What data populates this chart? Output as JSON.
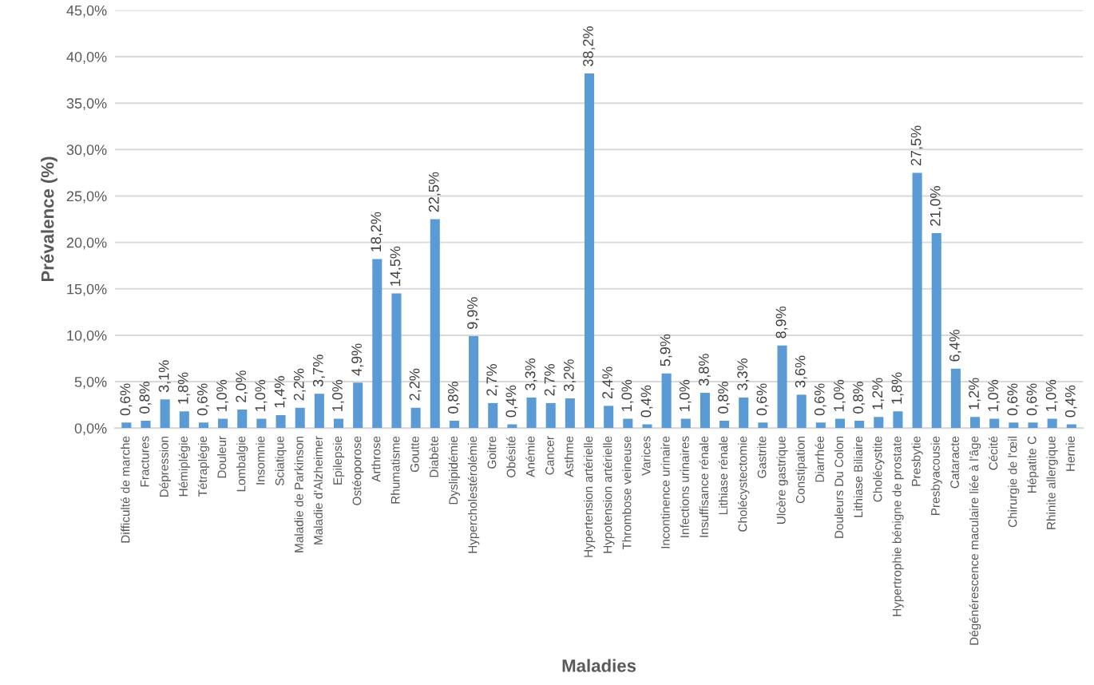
{
  "chart_data": {
    "type": "bar",
    "xlabel": "Maladies",
    "ylabel": "Prévalence (%)",
    "categories": [
      "Difficulté de marche",
      "Fractures",
      "Dépression",
      "Hémiplégie",
      "Tétraplégie",
      "Douleur",
      "Lombalgie",
      "Insomnie",
      "Sciatique",
      "Maladie de Parkinson",
      "Maladie d'Alzheimer",
      "Epilepsie",
      "Ostéoporose",
      "Arthrose",
      "Rhumatisme",
      "Goutte",
      "Diabète",
      "Dyslipidémie",
      "Hypercholestérolémie",
      "Goitre",
      "Obésité",
      "Anémie",
      "Cancer",
      "Asthme",
      "Hypertension artérielle",
      "Hypotension artérielle",
      "Thrombose veineuse",
      "Varices",
      "Incontinence urinaire",
      "Infections urinaires",
      "Insuffisance rénale",
      "Lithiase rénale",
      "Cholécystectomie",
      "Gastrite",
      "Ulcère gastrique",
      "Constipation",
      "Diarrhée",
      "Douleurs Du Colon",
      "Lithiase Biliaire",
      "Cholécystite",
      "Hypertrophie bénigne de prostate",
      "Presbytie",
      "Presbyacousie",
      "Cataracte",
      "Dégénérescence maculaire liée à l'âge",
      "Cécité",
      "Chirurgie de l'œil",
      "Hépatite C",
      "Rhinite allergique",
      "Hernie"
    ],
    "values": [
      0.6,
      0.8,
      3.1,
      1.8,
      0.6,
      1.0,
      2.0,
      1.0,
      1.4,
      2.2,
      3.7,
      1.0,
      4.9,
      18.2,
      14.5,
      2.2,
      22.5,
      0.8,
      9.9,
      2.7,
      0.4,
      3.3,
      2.7,
      3.2,
      38.2,
      2.4,
      1.0,
      0.4,
      5.9,
      1.0,
      3.8,
      0.8,
      3.3,
      0.6,
      8.9,
      3.6,
      0.6,
      1.0,
      0.8,
      1.2,
      1.8,
      27.5,
      21.0,
      6.4,
      1.2,
      1.0,
      0.6,
      0.6,
      1.0,
      0.4
    ],
    "value_labels": [
      "0,6%",
      "0,8%",
      "3,1%",
      "1,8%",
      "0,6%",
      "1,0%",
      "2,0%",
      "1,0%",
      "1,4%",
      "2,2%",
      "3,7%",
      "1,0%",
      "4,9%",
      "18,2%",
      "14,5%",
      "2,2%",
      "22,5%",
      "0,8%",
      "9,9%",
      "2,7%",
      "0,4%",
      "3,3%",
      "2,7%",
      "3,2%",
      "38,2%",
      "2,4%",
      "1,0%",
      "0,4%",
      "5,9%",
      "1,0%",
      "3,8%",
      "0,8%",
      "3,3%",
      "0,6%",
      "8,9%",
      "3,6%",
      "0,6%",
      "1,0%",
      "0,8%",
      "1,2%",
      "1,8%",
      "27,5%",
      "21,0%",
      "6,4%",
      "1,2%",
      "1,0%",
      "0,6%",
      "0,6%",
      "1,0%",
      "0,4%"
    ],
    "color": "#5b9bd5",
    "ylim": [
      0,
      45
    ],
    "yticks": [
      {
        "value": 0,
        "label": "0,0%"
      },
      {
        "value": 5,
        "label": "5,0%"
      },
      {
        "value": 10,
        "label": "10,0%"
      },
      {
        "value": 15,
        "label": "15,0%"
      },
      {
        "value": 20,
        "label": "20,0%"
      },
      {
        "value": 25,
        "label": "25,0%"
      },
      {
        "value": 30,
        "label": "30,0%"
      },
      {
        "value": 35,
        "label": "35,0%"
      },
      {
        "value": 40,
        "label": "40,0%"
      },
      {
        "value": 45,
        "label": "45,0%"
      }
    ],
    "grid": "y"
  }
}
